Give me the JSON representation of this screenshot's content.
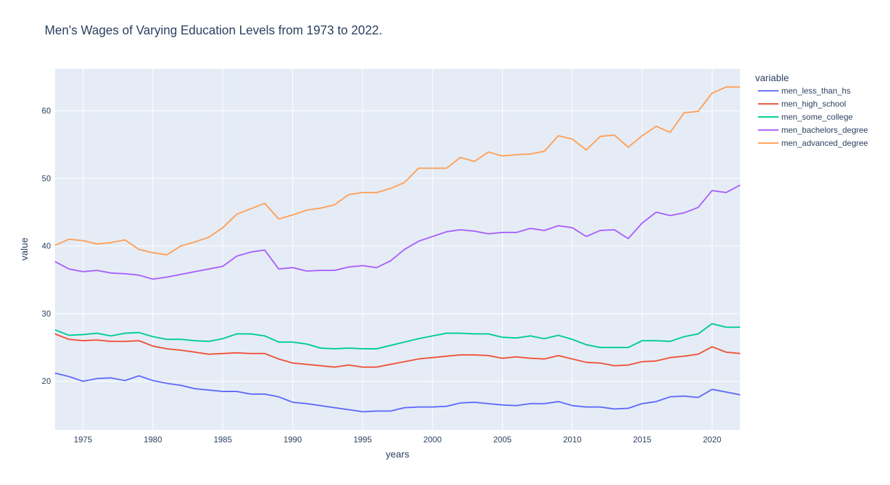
{
  "chart_data": {
    "type": "line",
    "title": "Men's Wages of Varying Education Levels from 1973 to 2022.",
    "xlabel": "years",
    "ylabel": "value",
    "legend_title": "variable",
    "legend_position": "right",
    "grid": true,
    "xlim": [
      1973,
      2022
    ],
    "ylim": [
      12.8,
      66.2
    ],
    "x_ticks": [
      1975,
      1980,
      1985,
      1990,
      1995,
      2000,
      2005,
      2010,
      2015,
      2020
    ],
    "y_ticks": [
      20,
      30,
      40,
      50,
      60
    ],
    "x": [
      1973,
      1974,
      1975,
      1976,
      1977,
      1978,
      1979,
      1980,
      1981,
      1982,
      1983,
      1984,
      1985,
      1986,
      1987,
      1988,
      1989,
      1990,
      1991,
      1992,
      1993,
      1994,
      1995,
      1996,
      1997,
      1998,
      1999,
      2000,
      2001,
      2002,
      2003,
      2004,
      2005,
      2006,
      2007,
      2008,
      2009,
      2010,
      2011,
      2012,
      2013,
      2014,
      2015,
      2016,
      2017,
      2018,
      2019,
      2020,
      2021,
      2022
    ],
    "series": [
      {
        "name": "men_less_than_hs",
        "color": "#636efa",
        "values": [
          21.2,
          20.7,
          20.0,
          20.4,
          20.5,
          20.1,
          20.8,
          20.1,
          19.7,
          19.4,
          18.9,
          18.7,
          18.5,
          18.5,
          18.1,
          18.1,
          17.7,
          16.9,
          16.7,
          16.4,
          16.1,
          15.8,
          15.5,
          15.6,
          15.6,
          16.1,
          16.2,
          16.2,
          16.3,
          16.8,
          16.9,
          16.7,
          16.5,
          16.4,
          16.7,
          16.7,
          17.0,
          16.4,
          16.2,
          16.2,
          15.9,
          16.0,
          16.7,
          17.0,
          17.7,
          17.8,
          17.6,
          18.8,
          18.4,
          18.0
        ]
      },
      {
        "name": "men_high_school",
        "color": "#ef553b",
        "values": [
          27.0,
          26.2,
          26.0,
          26.1,
          25.9,
          25.9,
          26.0,
          25.2,
          24.8,
          24.6,
          24.3,
          24.0,
          24.1,
          24.2,
          24.1,
          24.1,
          23.3,
          22.7,
          22.5,
          22.3,
          22.1,
          22.4,
          22.1,
          22.1,
          22.5,
          22.9,
          23.3,
          23.5,
          23.7,
          23.9,
          23.9,
          23.8,
          23.4,
          23.6,
          23.4,
          23.3,
          23.8,
          23.3,
          22.8,
          22.7,
          22.3,
          22.4,
          22.9,
          23.0,
          23.5,
          23.7,
          24.0,
          25.1,
          24.3,
          24.1
        ]
      },
      {
        "name": "men_some_college",
        "color": "#00cc96",
        "values": [
          27.6,
          26.8,
          26.9,
          27.1,
          26.7,
          27.1,
          27.2,
          26.6,
          26.2,
          26.2,
          26.0,
          25.9,
          26.3,
          27.0,
          27.0,
          26.7,
          25.8,
          25.8,
          25.5,
          24.9,
          24.8,
          24.9,
          24.8,
          24.8,
          25.3,
          25.8,
          26.3,
          26.7,
          27.1,
          27.1,
          27.0,
          27.0,
          26.5,
          26.4,
          26.7,
          26.3,
          26.8,
          26.2,
          25.4,
          25.0,
          25.0,
          25.0,
          26.0,
          26.0,
          25.9,
          26.6,
          27.0,
          28.5,
          28.0,
          28.0
        ]
      },
      {
        "name": "men_bachelors_degree",
        "color": "#ab63fa",
        "values": [
          37.7,
          36.6,
          36.2,
          36.4,
          36.0,
          35.9,
          35.7,
          35.1,
          35.4,
          35.8,
          36.2,
          36.6,
          37.0,
          38.5,
          39.1,
          39.4,
          36.6,
          36.8,
          36.3,
          36.4,
          36.4,
          36.9,
          37.1,
          36.8,
          37.8,
          39.5,
          40.7,
          41.4,
          42.1,
          42.4,
          42.2,
          41.8,
          42.0,
          42.0,
          42.6,
          42.3,
          43.0,
          42.7,
          41.4,
          42.3,
          42.4,
          41.1,
          43.4,
          45.0,
          44.5,
          44.9,
          45.7,
          48.2,
          47.9,
          49.0
        ]
      },
      {
        "name": "men_advanced_degree",
        "color": "#ffa15a",
        "values": [
          40.1,
          41.0,
          40.8,
          40.3,
          40.5,
          40.9,
          39.5,
          39.0,
          38.7,
          40.0,
          40.6,
          41.3,
          42.7,
          44.7,
          45.5,
          46.3,
          44.0,
          44.6,
          45.3,
          45.6,
          46.1,
          47.6,
          47.9,
          47.9,
          48.5,
          49.4,
          51.5,
          51.5,
          51.5,
          53.1,
          52.5,
          53.9,
          53.3,
          53.5,
          53.6,
          54.0,
          56.3,
          55.8,
          54.2,
          56.2,
          56.4,
          54.6,
          56.3,
          57.7,
          56.8,
          59.7,
          59.9,
          62.6,
          63.5,
          63.5
        ]
      }
    ]
  }
}
